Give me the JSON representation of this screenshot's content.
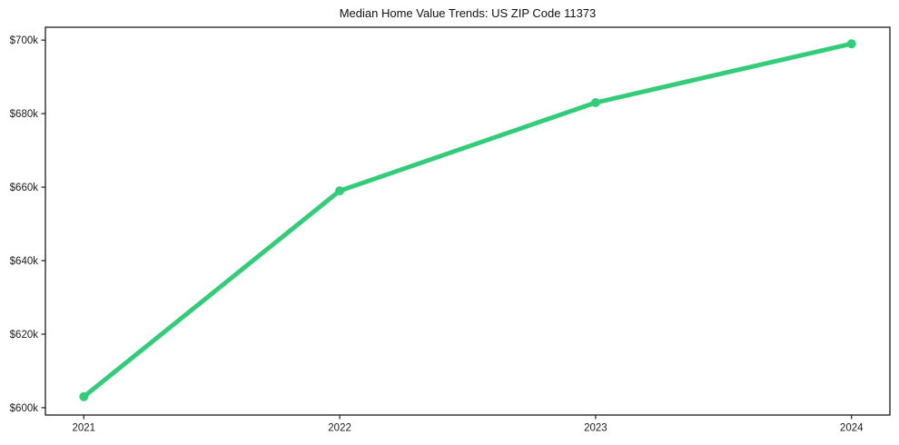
{
  "chart_data": {
    "type": "line",
    "title": "Median Home Value Trends: US ZIP Code 11373",
    "xlabel": "",
    "ylabel": "",
    "unit": "USD thousands",
    "x": [
      2021,
      2022,
      2023,
      2024
    ],
    "x_tick_labels": [
      "2021",
      "2022",
      "2023",
      "2024"
    ],
    "series": [
      {
        "name": "median-home-value",
        "values_k": [
          603,
          659,
          683,
          699
        ],
        "color": "#33cc78",
        "line_width": 5,
        "marker": "circle",
        "marker_radius": 5
      }
    ],
    "y_ticks_k": [
      600,
      620,
      640,
      660,
      680,
      700
    ],
    "y_tick_labels": [
      "$600k",
      "$620k",
      "$640k",
      "$660k",
      "$680k",
      "$700k"
    ],
    "xlim": [
      2020.85,
      2024.15
    ],
    "ylim_k": [
      598,
      703.5
    ],
    "grid": false,
    "legend": "none",
    "background": "#ffffff",
    "axis_color": "#1a1a1a",
    "tick_label_color": "#1a1a1a",
    "title_color": "#111111"
  }
}
